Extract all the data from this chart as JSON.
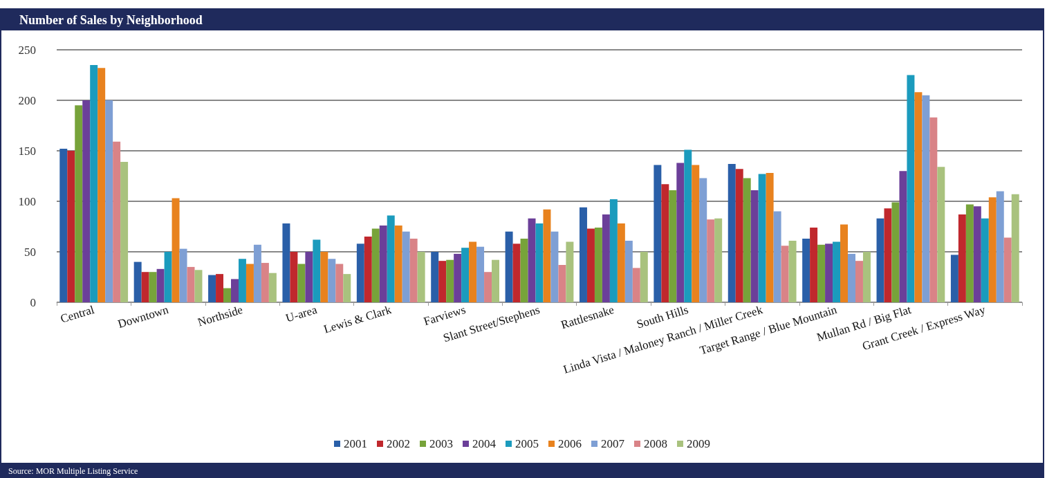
{
  "chart_data": {
    "type": "bar",
    "title": "Number of Sales by Neighborhood",
    "categories": [
      "Central",
      "Downtown",
      "Northside",
      "U-area",
      "Lewis & Clark",
      "Farviews",
      "Slant Street/Stephens",
      "Rattlesnake",
      "South Hills",
      "Linda Vista / Maloney Ranch / Miller Creek",
      "Target Range / Blue Mountain",
      "Mullan Rd / Big Flat",
      "Grant Creek / Express Way"
    ],
    "series": [
      {
        "name": "2001",
        "color": "#2a5fa8",
        "values": [
          152,
          40,
          27,
          78,
          58,
          50,
          70,
          94,
          136,
          137,
          63,
          83,
          47
        ]
      },
      {
        "name": "2002",
        "color": "#c0282d",
        "values": [
          150,
          30,
          28,
          50,
          65,
          41,
          58,
          73,
          117,
          132,
          74,
          93,
          87
        ]
      },
      {
        "name": "2003",
        "color": "#77a33a",
        "values": [
          195,
          30,
          14,
          38,
          73,
          42,
          63,
          74,
          111,
          123,
          57,
          99,
          97
        ]
      },
      {
        "name": "2004",
        "color": "#6b3f99",
        "values": [
          200,
          33,
          23,
          50,
          76,
          48,
          83,
          87,
          138,
          111,
          58,
          130,
          95
        ]
      },
      {
        "name": "2005",
        "color": "#1b9bbd",
        "values": [
          235,
          50,
          43,
          62,
          86,
          54,
          78,
          102,
          151,
          127,
          60,
          225,
          83
        ]
      },
      {
        "name": "2006",
        "color": "#e8821e",
        "values": [
          232,
          103,
          38,
          50,
          76,
          60,
          92,
          78,
          136,
          128,
          77,
          208,
          104
        ]
      },
      {
        "name": "2007",
        "color": "#7e9fd4",
        "values": [
          200,
          53,
          57,
          43,
          70,
          55,
          70,
          61,
          123,
          90,
          48,
          205,
          110
        ]
      },
      {
        "name": "2008",
        "color": "#d98387",
        "values": [
          159,
          35,
          39,
          38,
          63,
          30,
          37,
          34,
          82,
          56,
          41,
          183,
          64
        ]
      },
      {
        "name": "2009",
        "color": "#a9c27e",
        "values": [
          139,
          32,
          29,
          28,
          50,
          42,
          60,
          50,
          83,
          61,
          50,
          134,
          107
        ]
      }
    ],
    "ylim": [
      0,
      250
    ],
    "yticks": [
      0,
      50,
      100,
      150,
      200,
      250
    ],
    "grid": "y",
    "legend": "bottom",
    "annotations": [
      "Source: MOR Multiple Listing Service"
    ]
  }
}
